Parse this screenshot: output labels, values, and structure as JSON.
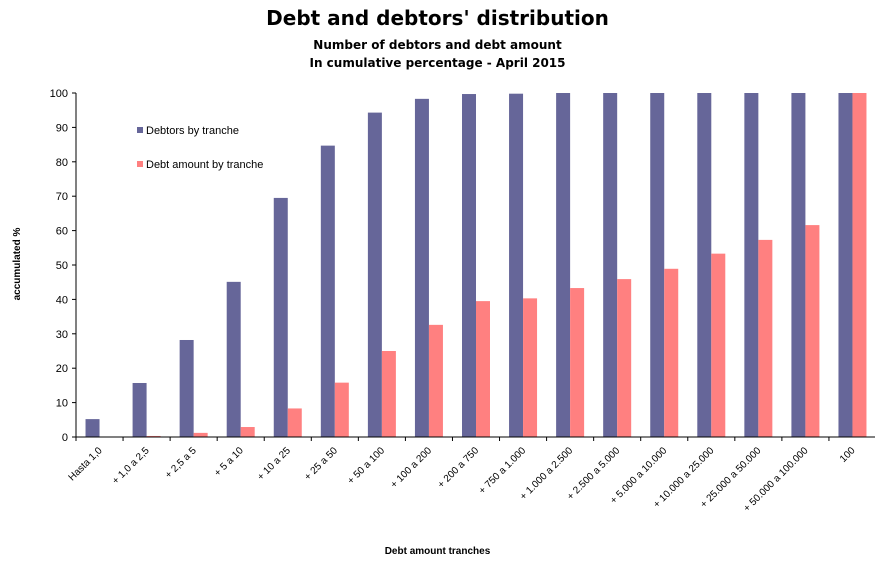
{
  "chart_data": {
    "type": "bar",
    "title": "Debt and debtors' distribution",
    "subtitle_1": "Number of debtors and debt amount",
    "subtitle_2": "In cumulative percentage - April 2015",
    "xlabel": "Debt amount tranches",
    "ylabel": "accumulated %",
    "ylim": [
      0,
      100
    ],
    "yticks": [
      0,
      10,
      20,
      30,
      40,
      50,
      60,
      70,
      80,
      90,
      100
    ],
    "grid": false,
    "legend": "top-left",
    "categories": [
      "Hasta  1,0",
      "+ 1,0 a 2,5",
      "+ 2,5 a 5",
      "+ 5 a 10",
      "+ 10 a 25",
      "+ 25 a 50",
      "+ 50 a 100",
      "+ 100 a 200",
      "+ 200 a 750",
      "+ 750 a 1.000",
      "+ 1.000  a 2.500",
      "+ 2.500  a 5.000",
      "+ 5.000  a 10.000",
      "+ 10.000 a 25.000",
      "+ 25.000 a 50.000",
      "+ 50.000 a 100.000",
      "100"
    ],
    "series": [
      {
        "name": "Debtors by tranche",
        "color": "#666699",
        "values": [
          5.2,
          15.7,
          28.2,
          45.1,
          69.5,
          84.7,
          94.3,
          98.3,
          99.7,
          99.8,
          100,
          100,
          100,
          100,
          100,
          100,
          100
        ]
      },
      {
        "name": "Debt amount by tranche",
        "color": "#ff8080",
        "values": [
          0.1,
          0.3,
          1.2,
          2.9,
          8.3,
          15.8,
          25.0,
          32.6,
          39.5,
          40.3,
          43.3,
          45.9,
          48.9,
          53.3,
          57.3,
          61.6,
          100
        ]
      }
    ]
  }
}
